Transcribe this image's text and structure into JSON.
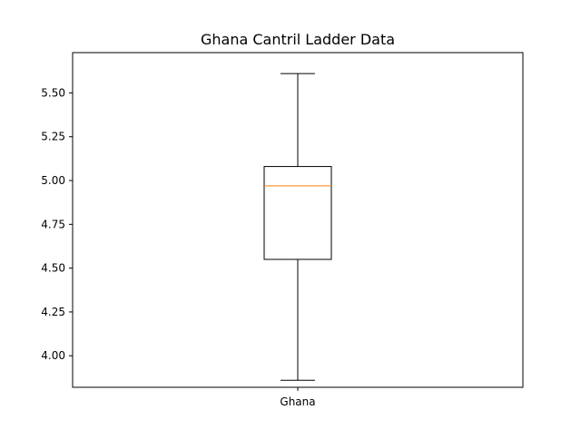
{
  "chart_data": {
    "type": "box",
    "title": "Ghana Cantril Ladder Data",
    "xlabel": "",
    "ylabel": "",
    "categories": [
      "Ghana"
    ],
    "boxes": [
      {
        "name": "Ghana",
        "whisker_low": 3.86,
        "q1": 4.55,
        "median": 4.97,
        "q3": 5.08,
        "whisker_high": 5.61
      }
    ],
    "ylim": [
      3.82,
      5.73
    ],
    "yticks": [
      4.0,
      4.25,
      4.5,
      4.75,
      5.0,
      5.25,
      5.5
    ],
    "ytick_labels": [
      "4.00",
      "4.25",
      "4.50",
      "4.75",
      "5.00",
      "5.25",
      "5.50"
    ],
    "grid": false,
    "legend": "none",
    "colors": {
      "box": "#000000",
      "median": "#ff7f0e",
      "axes": "#000000"
    }
  }
}
